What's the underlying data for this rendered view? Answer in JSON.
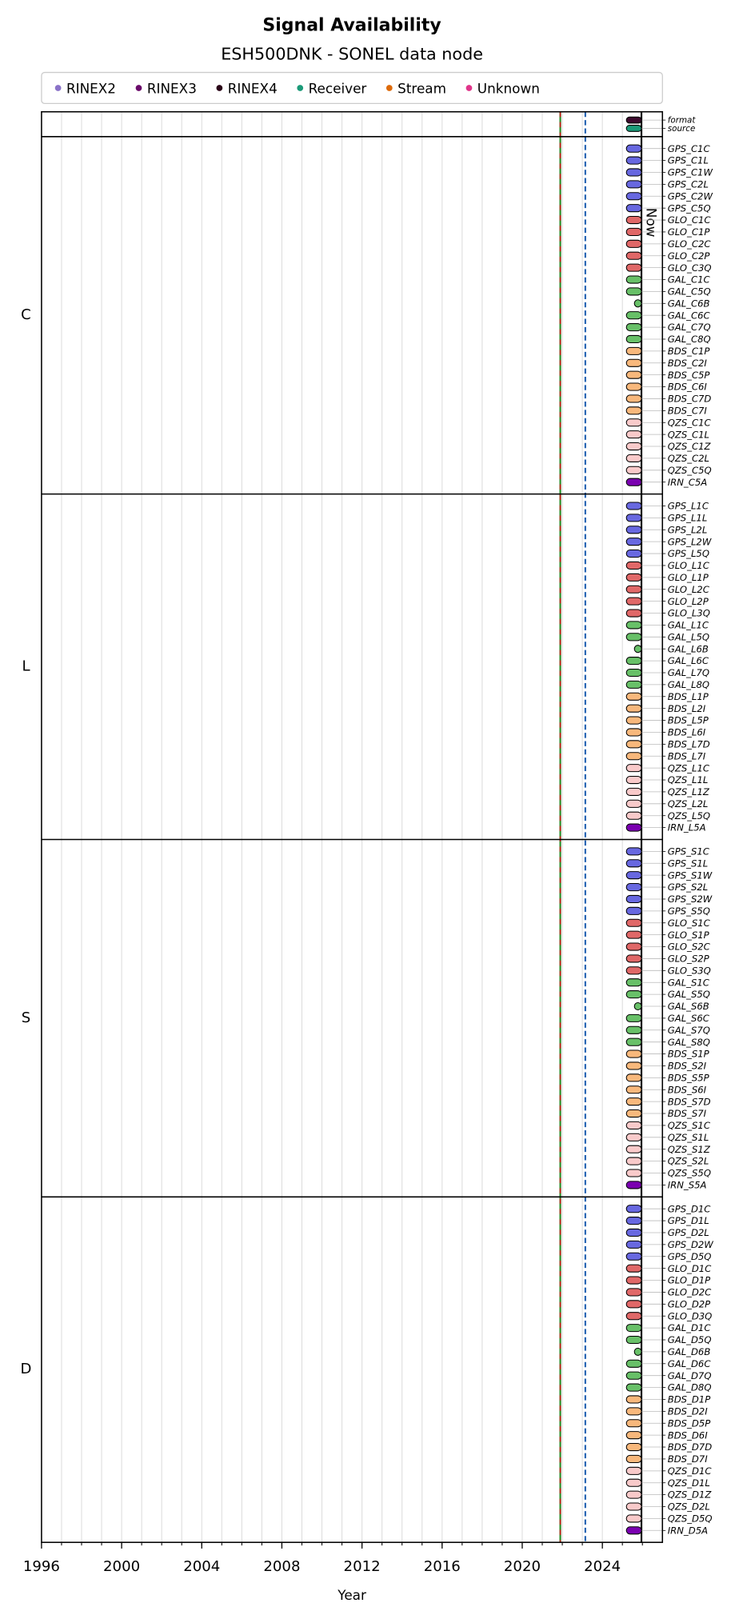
{
  "chart_data": {
    "type": "timeline",
    "title": "Signal Availability",
    "subtitle": "ESH500DNK - SONEL data node",
    "x_label": "Year",
    "xlim": [
      1996,
      2027
    ],
    "xticks": [
      1996,
      2000,
      2004,
      2008,
      2012,
      2016,
      2020,
      2024
    ],
    "xminorticks": [
      1996,
      1997,
      1998,
      1999,
      2000,
      2001,
      2002,
      2003,
      2004,
      2005,
      2006,
      2007,
      2008,
      2009,
      2010,
      2011,
      2012,
      2013,
      2014,
      2015,
      2016,
      2017,
      2018,
      2019,
      2020,
      2021,
      2022,
      2023,
      2024,
      2025,
      2026
    ],
    "grid": true,
    "legend_position": "top",
    "legend": [
      {
        "name": "RINEX2",
        "color": "#8a72c8"
      },
      {
        "name": "RINEX3",
        "color": "#6a0a6a"
      },
      {
        "name": "RINEX4",
        "color": "#2a0518"
      },
      {
        "name": "Receiver",
        "color": "#1b9a78"
      },
      {
        "name": "Stream",
        "color": "#dd6a0a"
      },
      {
        "name": "Unknown",
        "color": "#e0348a"
      }
    ],
    "constellation_colors": {
      "GPS": "#6868e0",
      "GLO": "#e06868",
      "GAL": "#68c068",
      "BDS": "#f8b87c",
      "QZS": "#f9caca",
      "IRN": "#7a00b0"
    },
    "vlines": [
      {
        "value": 2021.9,
        "color": "#1f8a1f",
        "dash_color": "#cc1010"
      },
      {
        "value": 2023.15,
        "color": "#1f5fb0",
        "dashed": true
      },
      {
        "value": 2025.95,
        "color": "#000000",
        "label": "Now"
      }
    ],
    "panels": [
      {
        "signals": [
          {
            "name": "format",
            "color": "#3d0a2e",
            "start": 2025.2,
            "end": 2025.95
          },
          {
            "name": "source",
            "color": "#1b9a78",
            "start": 2025.2,
            "end": 2025.95
          }
        ]
      },
      {
        "label": "C",
        "signals": [
          {
            "name": "GPS_C1C",
            "start": 2025.2,
            "end": 2025.95
          },
          {
            "name": "GPS_C1L",
            "start": 2025.2,
            "end": 2025.95
          },
          {
            "name": "GPS_C1W",
            "start": 2025.2,
            "end": 2025.95
          },
          {
            "name": "GPS_C2L",
            "start": 2025.2,
            "end": 2025.95
          },
          {
            "name": "GPS_C2W",
            "start": 2025.2,
            "end": 2025.95
          },
          {
            "name": "GPS_C5Q",
            "start": 2025.2,
            "end": 2025.95
          },
          {
            "name": "GLO_C1C",
            "start": 2025.2,
            "end": 2025.95
          },
          {
            "name": "GLO_C1P",
            "start": 2025.2,
            "end": 2025.95
          },
          {
            "name": "GLO_C2C",
            "start": 2025.2,
            "end": 2025.95
          },
          {
            "name": "GLO_C2P",
            "start": 2025.2,
            "end": 2025.95
          },
          {
            "name": "GLO_C3Q",
            "start": 2025.2,
            "end": 2025.95
          },
          {
            "name": "GAL_C1C",
            "start": 2025.2,
            "end": 2025.95
          },
          {
            "name": "GAL_C5Q",
            "start": 2025.2,
            "end": 2025.95
          },
          {
            "name": "GAL_C6B",
            "start": 2025.6,
            "end": 2025.95
          },
          {
            "name": "GAL_C6C",
            "start": 2025.2,
            "end": 2025.95
          },
          {
            "name": "GAL_C7Q",
            "start": 2025.2,
            "end": 2025.95
          },
          {
            "name": "GAL_C8Q",
            "start": 2025.2,
            "end": 2025.95
          },
          {
            "name": "BDS_C1P",
            "start": 2025.2,
            "end": 2025.95
          },
          {
            "name": "BDS_C2I",
            "start": 2025.2,
            "end": 2025.95
          },
          {
            "name": "BDS_C5P",
            "start": 2025.2,
            "end": 2025.95
          },
          {
            "name": "BDS_C6I",
            "start": 2025.2,
            "end": 2025.95
          },
          {
            "name": "BDS_C7D",
            "start": 2025.2,
            "end": 2025.95
          },
          {
            "name": "BDS_C7I",
            "start": 2025.2,
            "end": 2025.95
          },
          {
            "name": "QZS_C1C",
            "start": 2025.2,
            "end": 2025.95
          },
          {
            "name": "QZS_C1L",
            "start": 2025.2,
            "end": 2025.95
          },
          {
            "name": "QZS_C1Z",
            "start": 2025.2,
            "end": 2025.95
          },
          {
            "name": "QZS_C2L",
            "start": 2025.2,
            "end": 2025.95
          },
          {
            "name": "QZS_C5Q",
            "start": 2025.2,
            "end": 2025.95
          },
          {
            "name": "IRN_C5A",
            "start": 2025.2,
            "end": 2025.95
          }
        ]
      },
      {
        "label": "L",
        "signals": [
          {
            "name": "GPS_L1C",
            "start": 2025.2,
            "end": 2025.95
          },
          {
            "name": "GPS_L1L",
            "start": 2025.2,
            "end": 2025.95
          },
          {
            "name": "GPS_L2L",
            "start": 2025.2,
            "end": 2025.95
          },
          {
            "name": "GPS_L2W",
            "start": 2025.2,
            "end": 2025.95
          },
          {
            "name": "GPS_L5Q",
            "start": 2025.2,
            "end": 2025.95
          },
          {
            "name": "GLO_L1C",
            "start": 2025.2,
            "end": 2025.95
          },
          {
            "name": "GLO_L1P",
            "start": 2025.2,
            "end": 2025.95
          },
          {
            "name": "GLO_L2C",
            "start": 2025.2,
            "end": 2025.95
          },
          {
            "name": "GLO_L2P",
            "start": 2025.2,
            "end": 2025.95
          },
          {
            "name": "GLO_L3Q",
            "start": 2025.2,
            "end": 2025.95
          },
          {
            "name": "GAL_L1C",
            "start": 2025.2,
            "end": 2025.95
          },
          {
            "name": "GAL_L5Q",
            "start": 2025.2,
            "end": 2025.95
          },
          {
            "name": "GAL_L6B",
            "start": 2025.6,
            "end": 2025.95
          },
          {
            "name": "GAL_L6C",
            "start": 2025.2,
            "end": 2025.95
          },
          {
            "name": "GAL_L7Q",
            "start": 2025.2,
            "end": 2025.95
          },
          {
            "name": "GAL_L8Q",
            "start": 2025.2,
            "end": 2025.95
          },
          {
            "name": "BDS_L1P",
            "start": 2025.2,
            "end": 2025.95
          },
          {
            "name": "BDS_L2I",
            "start": 2025.2,
            "end": 2025.95
          },
          {
            "name": "BDS_L5P",
            "start": 2025.2,
            "end": 2025.95
          },
          {
            "name": "BDS_L6I",
            "start": 2025.2,
            "end": 2025.95
          },
          {
            "name": "BDS_L7D",
            "start": 2025.2,
            "end": 2025.95
          },
          {
            "name": "BDS_L7I",
            "start": 2025.2,
            "end": 2025.95
          },
          {
            "name": "QZS_L1C",
            "start": 2025.2,
            "end": 2025.95
          },
          {
            "name": "QZS_L1L",
            "start": 2025.2,
            "end": 2025.95
          },
          {
            "name": "QZS_L1Z",
            "start": 2025.2,
            "end": 2025.95
          },
          {
            "name": "QZS_L2L",
            "start": 2025.2,
            "end": 2025.95
          },
          {
            "name": "QZS_L5Q",
            "start": 2025.2,
            "end": 2025.95
          },
          {
            "name": "IRN_L5A",
            "start": 2025.2,
            "end": 2025.95
          }
        ]
      },
      {
        "label": "S",
        "signals": [
          {
            "name": "GPS_S1C",
            "start": 2025.2,
            "end": 2025.95
          },
          {
            "name": "GPS_S1L",
            "start": 2025.2,
            "end": 2025.95
          },
          {
            "name": "GPS_S1W",
            "start": 2025.2,
            "end": 2025.95
          },
          {
            "name": "GPS_S2L",
            "start": 2025.2,
            "end": 2025.95
          },
          {
            "name": "GPS_S2W",
            "start": 2025.2,
            "end": 2025.95
          },
          {
            "name": "GPS_S5Q",
            "start": 2025.2,
            "end": 2025.95
          },
          {
            "name": "GLO_S1C",
            "start": 2025.2,
            "end": 2025.95
          },
          {
            "name": "GLO_S1P",
            "start": 2025.2,
            "end": 2025.95
          },
          {
            "name": "GLO_S2C",
            "start": 2025.2,
            "end": 2025.95
          },
          {
            "name": "GLO_S2P",
            "start": 2025.2,
            "end": 2025.95
          },
          {
            "name": "GLO_S3Q",
            "start": 2025.2,
            "end": 2025.95
          },
          {
            "name": "GAL_S1C",
            "start": 2025.2,
            "end": 2025.95
          },
          {
            "name": "GAL_S5Q",
            "start": 2025.2,
            "end": 2025.95
          },
          {
            "name": "GAL_S6B",
            "start": 2025.6,
            "end": 2025.95
          },
          {
            "name": "GAL_S6C",
            "start": 2025.2,
            "end": 2025.95
          },
          {
            "name": "GAL_S7Q",
            "start": 2025.2,
            "end": 2025.95
          },
          {
            "name": "GAL_S8Q",
            "start": 2025.2,
            "end": 2025.95
          },
          {
            "name": "BDS_S1P",
            "start": 2025.2,
            "end": 2025.95
          },
          {
            "name": "BDS_S2I",
            "start": 2025.2,
            "end": 2025.95
          },
          {
            "name": "BDS_S5P",
            "start": 2025.2,
            "end": 2025.95
          },
          {
            "name": "BDS_S6I",
            "start": 2025.2,
            "end": 2025.95
          },
          {
            "name": "BDS_S7D",
            "start": 2025.2,
            "end": 2025.95
          },
          {
            "name": "BDS_S7I",
            "start": 2025.2,
            "end": 2025.95
          },
          {
            "name": "QZS_S1C",
            "start": 2025.2,
            "end": 2025.95
          },
          {
            "name": "QZS_S1L",
            "start": 2025.2,
            "end": 2025.95
          },
          {
            "name": "QZS_S1Z",
            "start": 2025.2,
            "end": 2025.95
          },
          {
            "name": "QZS_S2L",
            "start": 2025.2,
            "end": 2025.95
          },
          {
            "name": "QZS_S5Q",
            "start": 2025.2,
            "end": 2025.95
          },
          {
            "name": "IRN_S5A",
            "start": 2025.2,
            "end": 2025.95
          }
        ]
      },
      {
        "label": "D",
        "signals": [
          {
            "name": "GPS_D1C",
            "start": 2025.2,
            "end": 2025.95
          },
          {
            "name": "GPS_D1L",
            "start": 2025.2,
            "end": 2025.95
          },
          {
            "name": "GPS_D2L",
            "start": 2025.2,
            "end": 2025.95
          },
          {
            "name": "GPS_D2W",
            "start": 2025.2,
            "end": 2025.95
          },
          {
            "name": "GPS_D5Q",
            "start": 2025.2,
            "end": 2025.95
          },
          {
            "name": "GLO_D1C",
            "start": 2025.2,
            "end": 2025.95
          },
          {
            "name": "GLO_D1P",
            "start": 2025.2,
            "end": 2025.95
          },
          {
            "name": "GLO_D2C",
            "start": 2025.2,
            "end": 2025.95
          },
          {
            "name": "GLO_D2P",
            "start": 2025.2,
            "end": 2025.95
          },
          {
            "name": "GLO_D3Q",
            "start": 2025.2,
            "end": 2025.95
          },
          {
            "name": "GAL_D1C",
            "start": 2025.2,
            "end": 2025.95
          },
          {
            "name": "GAL_D5Q",
            "start": 2025.2,
            "end": 2025.95
          },
          {
            "name": "GAL_D6B",
            "start": 2025.6,
            "end": 2025.95
          },
          {
            "name": "GAL_D6C",
            "start": 2025.2,
            "end": 2025.95
          },
          {
            "name": "GAL_D7Q",
            "start": 2025.2,
            "end": 2025.95
          },
          {
            "name": "GAL_D8Q",
            "start": 2025.2,
            "end": 2025.95
          },
          {
            "name": "BDS_D1P",
            "start": 2025.2,
            "end": 2025.95
          },
          {
            "name": "BDS_D2I",
            "start": 2025.2,
            "end": 2025.95
          },
          {
            "name": "BDS_D5P",
            "start": 2025.2,
            "end": 2025.95
          },
          {
            "name": "BDS_D6I",
            "start": 2025.2,
            "end": 2025.95
          },
          {
            "name": "BDS_D7D",
            "start": 2025.2,
            "end": 2025.95
          },
          {
            "name": "BDS_D7I",
            "start": 2025.2,
            "end": 2025.95
          },
          {
            "name": "QZS_D1C",
            "start": 2025.2,
            "end": 2025.95
          },
          {
            "name": "QZS_D1L",
            "start": 2025.2,
            "end": 2025.95
          },
          {
            "name": "QZS_D1Z",
            "start": 2025.2,
            "end": 2025.95
          },
          {
            "name": "QZS_D2L",
            "start": 2025.2,
            "end": 2025.95
          },
          {
            "name": "QZS_D5Q",
            "start": 2025.2,
            "end": 2025.95
          },
          {
            "name": "IRN_D5A",
            "start": 2025.2,
            "end": 2025.95
          }
        ]
      }
    ]
  }
}
